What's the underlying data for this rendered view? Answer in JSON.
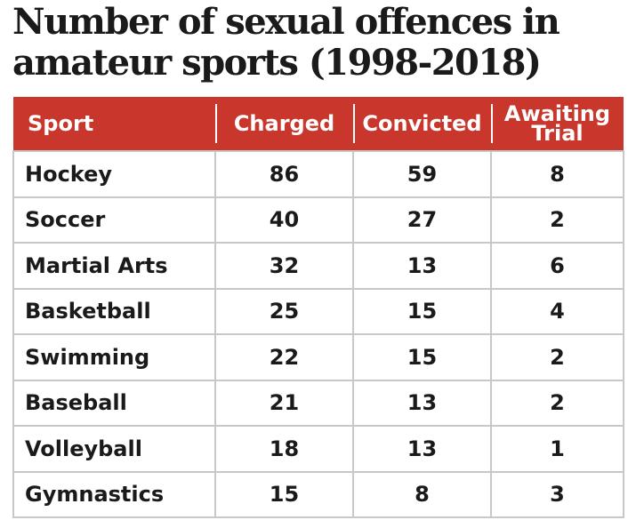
{
  "chart_data": {
    "type": "table",
    "title": "Number of sexual offences in amateur sports (1998-2018)",
    "columns": [
      "Sport",
      "Charged",
      "Convicted",
      "Awaiting Trial"
    ],
    "rows": [
      {
        "sport": "Hockey",
        "charged": "86",
        "convicted": "59",
        "awaiting": "8"
      },
      {
        "sport": "Soccer",
        "charged": "40",
        "convicted": "27",
        "awaiting": "2"
      },
      {
        "sport": "Martial Arts",
        "charged": "32",
        "convicted": "13",
        "awaiting": "6"
      },
      {
        "sport": "Basketball",
        "charged": "25",
        "convicted": "15",
        "awaiting": "4"
      },
      {
        "sport": "Swimming",
        "charged": "22",
        "convicted": "15",
        "awaiting": "2"
      },
      {
        "sport": "Baseball",
        "charged": "21",
        "convicted": "13",
        "awaiting": "2"
      },
      {
        "sport": "Volleyball",
        "charged": "18",
        "convicted": "13",
        "awaiting": "1"
      },
      {
        "sport": "Gymnastics",
        "charged": "15",
        "convicted": "8",
        "awaiting": "3"
      }
    ],
    "header_color": "#c9362b",
    "grid_color": "#c8c8c8"
  }
}
